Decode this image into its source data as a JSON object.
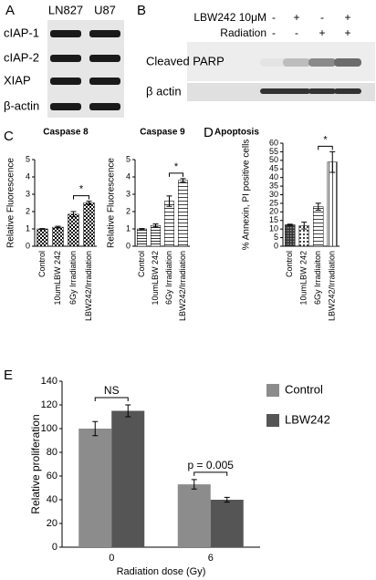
{
  "panel_a": {
    "letter": "A",
    "columns": [
      "LN827",
      "U87"
    ],
    "rows": [
      "cIAP-1",
      "cIAP-2",
      "XIAP",
      "β-actin"
    ]
  },
  "panel_b": {
    "letter": "B",
    "conditions": [
      {
        "label": "LBW242 10μM",
        "signs": [
          "-",
          "+",
          "-",
          "+"
        ]
      },
      {
        "label": "Radiation",
        "signs": [
          "-",
          "-",
          "+",
          "+"
        ]
      }
    ],
    "rows": [
      "Cleaved PARP",
      "β actin"
    ]
  },
  "chart_data": [
    {
      "type": "bar",
      "panel": "C",
      "title": "Caspase 8",
      "y_label": "Relative Fluorescence",
      "categories": [
        "Control",
        "10umLBW 242",
        "6Gy Irradiation",
        "LBW242/Irradiation"
      ],
      "values": [
        1.0,
        1.1,
        1.85,
        2.5
      ],
      "errors": [
        0.02,
        0.05,
        0.15,
        0.1
      ],
      "color": "#000000",
      "ylim": [
        0,
        5
      ],
      "yticks": [
        0,
        1,
        2,
        3,
        4,
        5
      ],
      "annotations": [
        "*"
      ]
    },
    {
      "type": "bar",
      "title": "Caspase 9",
      "y_label": "Relative Fluorescence",
      "categories": [
        "Control",
        "10umLBW 242",
        "6Gy Irradiation",
        "LBW242/Irradiation"
      ],
      "values": [
        1.0,
        1.2,
        2.6,
        3.8
      ],
      "errors": [
        0.02,
        0.08,
        0.3,
        0.1
      ],
      "color": "#000000",
      "ylim": [
        0,
        5
      ],
      "yticks": [
        0,
        1,
        2,
        3,
        4,
        5
      ],
      "annotations": [
        "*"
      ]
    },
    {
      "type": "bar",
      "panel": "D",
      "title": "Apoptosis",
      "y_label": "% Annexin, PI positive cells",
      "categories": [
        "Control",
        "10umLBW 242",
        "6Gy Irradiaiton",
        "LBW242/Irradiation"
      ],
      "values": [
        12.5,
        12,
        23,
        49
      ],
      "errors": [
        0.3,
        2,
        2,
        6
      ],
      "color": "#000000",
      "ylim": [
        0,
        60
      ],
      "yticks": [
        0,
        5,
        10,
        15,
        20,
        25,
        30,
        35,
        40,
        45,
        50,
        55,
        60
      ],
      "annotations": [
        "*"
      ]
    },
    {
      "type": "grouped_bar",
      "panel": "E",
      "x_label": "Radiation dose (Gy)",
      "y_label": "Relative proliferation",
      "categories": [
        "0",
        "6"
      ],
      "series": [
        {
          "name": "Control",
          "color": "#8c8c8c",
          "values": [
            100,
            53
          ],
          "errors": [
            6,
            4
          ]
        },
        {
          "name": "LBW242",
          "color": "#555555",
          "values": [
            115,
            40
          ],
          "errors": [
            5,
            2
          ]
        }
      ],
      "ylim": [
        0,
        140
      ],
      "yticks": [
        0,
        20,
        40,
        60,
        80,
        100,
        120,
        140
      ],
      "annotations": [
        "NS",
        "p = 0.005"
      ]
    }
  ]
}
